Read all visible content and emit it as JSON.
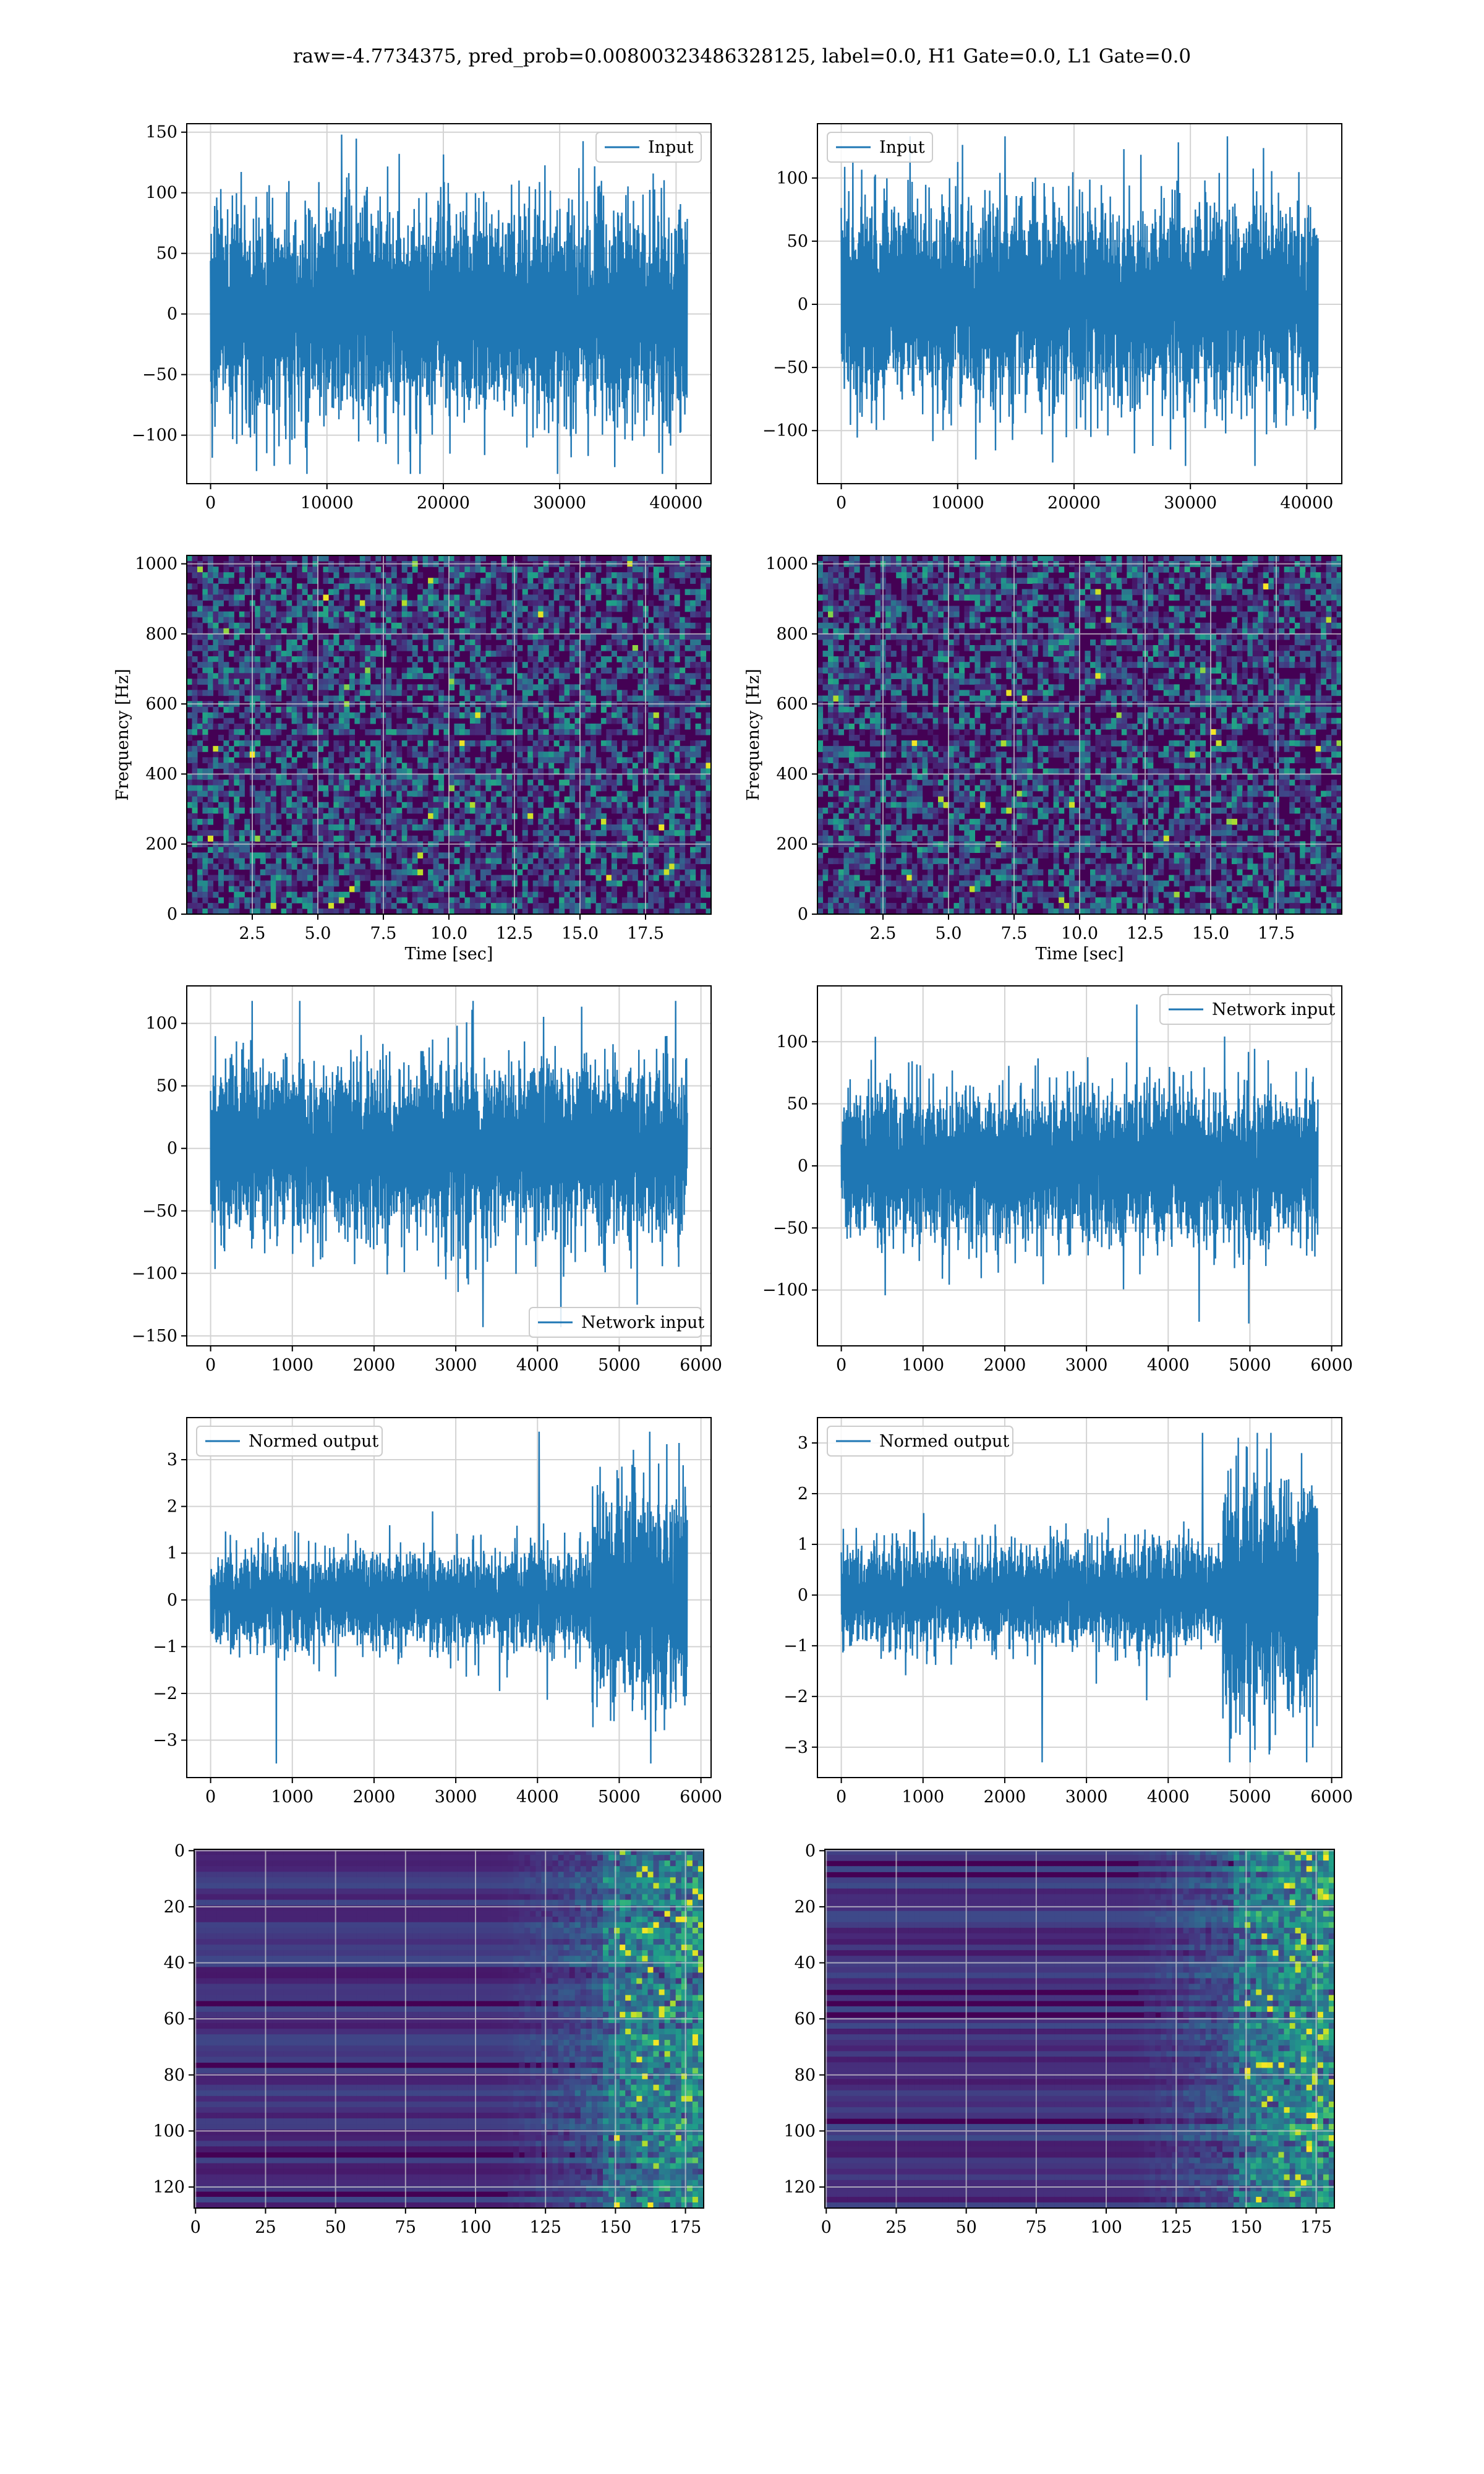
{
  "title": "raw=-4.7734375, pred_prob=0.00800323486328125, label=0.0, H1 Gate=0.0, L1 Gate=0.0",
  "colors": {
    "line": "#1f77b4",
    "grid": "#d3d3d3",
    "axes": "#000000",
    "viridis_low": "#440154",
    "viridis_high": "#fde725"
  },
  "chart_data": [
    {
      "id": "input-h1",
      "type": "line",
      "series": [
        {
          "name": "Input",
          "amplitude": 60,
          "peak_max": 148,
          "peak_min": -132
        }
      ],
      "x": {
        "range": [
          -2048,
          43008
        ],
        "ticks": [
          0,
          10000,
          20000,
          30000,
          40000
        ],
        "tick_labels": [
          "0",
          "10000",
          "20000",
          "30000",
          "40000"
        ],
        "data_range": [
          0,
          40960
        ]
      },
      "y": {
        "range": [
          -140,
          157
        ],
        "ticks": [
          -100,
          -50,
          0,
          50,
          100,
          150
        ],
        "tick_labels": [
          "−100",
          "−50",
          "0",
          "50",
          "100",
          "150"
        ]
      },
      "grid": true,
      "legend": "upper right"
    },
    {
      "id": "input-l1",
      "type": "line",
      "series": [
        {
          "name": "Input",
          "amplitude": 55,
          "peak_max": 133,
          "peak_min": -128
        }
      ],
      "x": {
        "range": [
          -2048,
          43008
        ],
        "ticks": [
          0,
          10000,
          20000,
          30000,
          40000
        ],
        "tick_labels": [
          "0",
          "10000",
          "20000",
          "30000",
          "40000"
        ],
        "data_range": [
          0,
          40960
        ]
      },
      "y": {
        "range": [
          -142,
          143
        ],
        "ticks": [
          -100,
          -50,
          0,
          50,
          100
        ],
        "tick_labels": [
          "−100",
          "−50",
          "0",
          "50",
          "100"
        ]
      },
      "grid": true,
      "legend": "upper left"
    },
    {
      "id": "spectrogram-h1",
      "type": "heatmap",
      "colormap": "viridis",
      "xlabel": "Time [sec]",
      "ylabel": "Frequency [Hz]",
      "x": {
        "range": [
          0,
          20
        ],
        "ticks": [
          2.5,
          5.0,
          7.5,
          10.0,
          12.5,
          15.0,
          17.5
        ],
        "tick_labels": [
          "2.5",
          "5.0",
          "7.5",
          "10.0",
          "12.5",
          "15.0",
          "17.5"
        ]
      },
      "y": {
        "range": [
          0,
          1024
        ],
        "ticks": [
          0,
          200,
          400,
          600,
          800,
          1000
        ],
        "tick_labels": [
          "0",
          "200",
          "400",
          "600",
          "800",
          "1000"
        ]
      },
      "grid": true
    },
    {
      "id": "spectrogram-l1",
      "type": "heatmap",
      "colormap": "viridis",
      "xlabel": "Time [sec]",
      "ylabel": "Frequency [Hz]",
      "x": {
        "range": [
          0,
          20
        ],
        "ticks": [
          2.5,
          5.0,
          7.5,
          10.0,
          12.5,
          15.0,
          17.5
        ],
        "tick_labels": [
          "2.5",
          "5.0",
          "7.5",
          "10.0",
          "12.5",
          "15.0",
          "17.5"
        ]
      },
      "y": {
        "range": [
          0,
          1024
        ],
        "ticks": [
          0,
          200,
          400,
          600,
          800,
          1000
        ],
        "tick_labels": [
          "0",
          "200",
          "400",
          "600",
          "800",
          "1000"
        ]
      },
      "grid": true
    },
    {
      "id": "network-input-h1",
      "type": "line",
      "series": [
        {
          "name": "Network input",
          "amplitude": 48,
          "peak_max": 118,
          "peak_min": -143
        }
      ],
      "x": {
        "range": [
          -292,
          6124
        ],
        "ticks": [
          0,
          1000,
          2000,
          3000,
          4000,
          5000,
          6000
        ],
        "tick_labels": [
          "0",
          "1000",
          "2000",
          "3000",
          "4000",
          "5000",
          "6000"
        ],
        "data_range": [
          0,
          5832
        ]
      },
      "y": {
        "range": [
          -158,
          130
        ],
        "ticks": [
          -150,
          -100,
          -50,
          0,
          50,
          100
        ],
        "tick_labels": [
          "−150",
          "−100",
          "−50",
          "0",
          "50",
          "100"
        ]
      },
      "grid": true,
      "legend": "lower right"
    },
    {
      "id": "network-input-l1",
      "type": "line",
      "series": [
        {
          "name": "Network input",
          "amplitude": 42,
          "peak_max": 130,
          "peak_min": -127
        }
      ],
      "x": {
        "range": [
          -292,
          6124
        ],
        "ticks": [
          0,
          1000,
          2000,
          3000,
          4000,
          5000,
          6000
        ],
        "tick_labels": [
          "0",
          "1000",
          "2000",
          "3000",
          "4000",
          "5000",
          "6000"
        ],
        "data_range": [
          0,
          5832
        ]
      },
      "y": {
        "range": [
          -145,
          145
        ],
        "ticks": [
          -100,
          -50,
          0,
          50,
          100
        ],
        "tick_labels": [
          "−100",
          "−50",
          "0",
          "50",
          "100"
        ]
      },
      "grid": true,
      "legend": "upper right"
    },
    {
      "id": "normed-output-h1",
      "type": "line",
      "series": [
        {
          "name": "Normed output",
          "amplitude": 0.7,
          "peak_max": 3.6,
          "peak_min": -3.5
        }
      ],
      "x": {
        "range": [
          -292,
          6124
        ],
        "ticks": [
          0,
          1000,
          2000,
          3000,
          4000,
          5000,
          6000
        ],
        "tick_labels": [
          "0",
          "1000",
          "2000",
          "3000",
          "4000",
          "5000",
          "6000"
        ],
        "data_range": [
          0,
          5832
        ]
      },
      "y": {
        "range": [
          -3.8,
          3.9
        ],
        "ticks": [
          -3,
          -2,
          -1,
          0,
          1,
          2,
          3
        ],
        "tick_labels": [
          "−3",
          "−2",
          "−1",
          "0",
          "1",
          "2",
          "3"
        ]
      },
      "grid": true,
      "legend": "upper left"
    },
    {
      "id": "normed-output-l1",
      "type": "line",
      "series": [
        {
          "name": "Normed output",
          "amplitude": 0.7,
          "peak_max": 3.2,
          "peak_min": -3.3
        }
      ],
      "x": {
        "range": [
          -292,
          6124
        ],
        "ticks": [
          0,
          1000,
          2000,
          3000,
          4000,
          5000,
          6000
        ],
        "tick_labels": [
          "0",
          "1000",
          "2000",
          "3000",
          "4000",
          "5000",
          "6000"
        ],
        "data_range": [
          0,
          5832
        ]
      },
      "y": {
        "range": [
          -3.6,
          3.5
        ],
        "ticks": [
          -3,
          -2,
          -1,
          0,
          1,
          2,
          3
        ],
        "tick_labels": [
          "−3",
          "−2",
          "−1",
          "0",
          "1",
          "2",
          "3"
        ]
      },
      "grid": true,
      "legend": "upper left"
    },
    {
      "id": "feature-map-h1",
      "type": "heatmap",
      "colormap": "viridis",
      "x": {
        "range": [
          -0.5,
          181.5
        ],
        "ticks": [
          0,
          25,
          50,
          75,
          100,
          125,
          150,
          175
        ],
        "tick_labels": [
          "0",
          "25",
          "50",
          "75",
          "100",
          "125",
          "150",
          "175"
        ]
      },
      "y": {
        "range": [
          127.5,
          -0.5
        ],
        "ticks": [
          0,
          20,
          40,
          60,
          80,
          100,
          120
        ],
        "tick_labels": [
          "0",
          "20",
          "40",
          "60",
          "80",
          "100",
          "120"
        ]
      },
      "grid": true
    },
    {
      "id": "feature-map-l1",
      "type": "heatmap",
      "colormap": "viridis",
      "x": {
        "range": [
          -0.5,
          181.5
        ],
        "ticks": [
          0,
          25,
          50,
          75,
          100,
          125,
          150,
          175
        ],
        "tick_labels": [
          "0",
          "25",
          "50",
          "75",
          "100",
          "125",
          "150",
          "175"
        ]
      },
      "y": {
        "range": [
          127.5,
          -0.5
        ],
        "ticks": [
          0,
          20,
          40,
          60,
          80,
          100,
          120
        ],
        "tick_labels": [
          "0",
          "20",
          "40",
          "60",
          "80",
          "100",
          "120"
        ]
      },
      "grid": true
    }
  ]
}
